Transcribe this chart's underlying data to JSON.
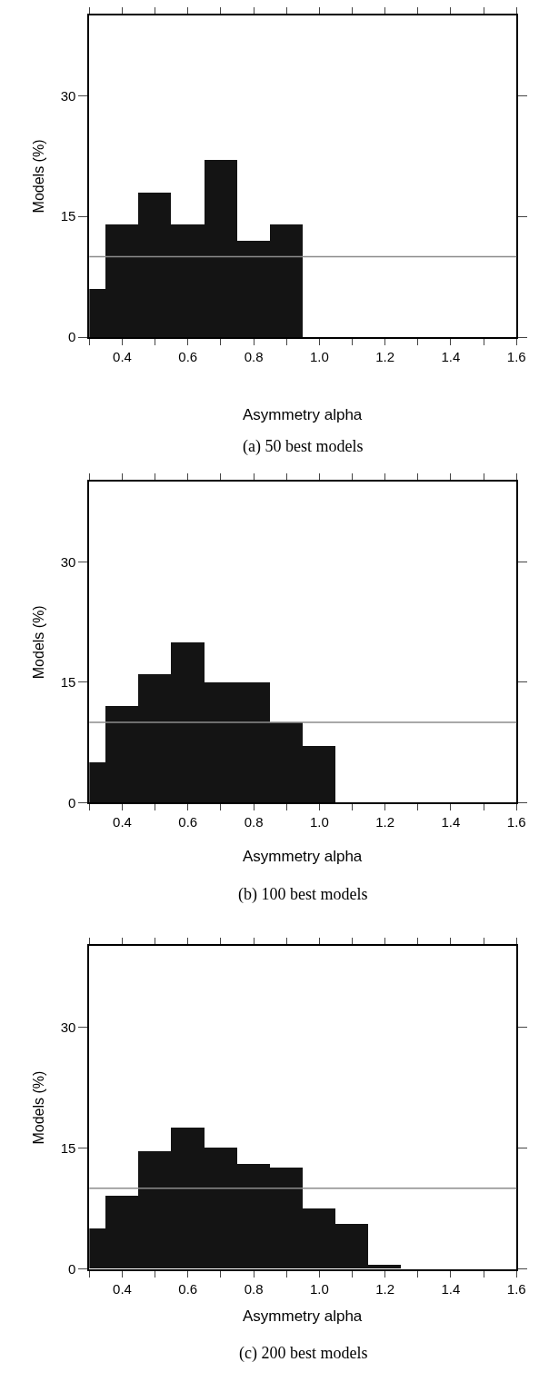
{
  "chart_data": [
    {
      "type": "histogram",
      "title": "(a) 50 best models",
      "xlabel": "Asymmetry alpha",
      "ylabel": "Models (%)",
      "color": "#141414",
      "bins": [
        0.3,
        0.35,
        0.45,
        0.55,
        0.65,
        0.75,
        0.85,
        0.95
      ],
      "values": [
        6,
        14,
        18,
        14,
        22,
        12,
        14
      ],
      "xlim": [
        0.3,
        1.6
      ],
      "xticks": [
        {
          "value": 0.3,
          "label": null
        },
        0.4,
        {
          "value": 0.5,
          "label": null
        },
        0.6,
        {
          "value": 0.7,
          "label": null
        },
        0.8,
        {
          "value": 0.9,
          "label": null
        },
        {
          "value": 1.0,
          "label": "1.0"
        },
        {
          "value": 1.1,
          "label": null
        },
        1.2,
        {
          "value": 1.3,
          "label": null
        },
        1.4,
        {
          "value": 1.5,
          "label": null
        },
        1.6
      ],
      "ylim": [
        0,
        40
      ],
      "yticks": [
        0,
        15,
        30
      ],
      "ref_lines": [
        {
          "axis": "y",
          "value": 10,
          "color": "#8c8c8c"
        }
      ]
    },
    {
      "type": "histogram",
      "title": "(b) 100 best models",
      "xlabel": "Asymmetry alpha",
      "ylabel": "Models (%)",
      "color": "#141414",
      "bins": [
        0.3,
        0.35,
        0.45,
        0.55,
        0.65,
        0.75,
        0.85,
        0.95,
        1.05
      ],
      "values": [
        5,
        12,
        16,
        20,
        15,
        15,
        10,
        7
      ],
      "xlim": [
        0.3,
        1.6
      ],
      "xticks": [
        {
          "value": 0.3,
          "label": null
        },
        0.4,
        {
          "value": 0.5,
          "label": null
        },
        0.6,
        {
          "value": 0.7,
          "label": null
        },
        0.8,
        {
          "value": 0.9,
          "label": null
        },
        {
          "value": 1.0,
          "label": "1.0"
        },
        {
          "value": 1.1,
          "label": null
        },
        1.2,
        {
          "value": 1.3,
          "label": null
        },
        1.4,
        {
          "value": 1.5,
          "label": null
        },
        1.6
      ],
      "ylim": [
        0,
        40
      ],
      "yticks": [
        0,
        15,
        30
      ],
      "ref_lines": [
        {
          "axis": "y",
          "value": 10,
          "color": "#8c8c8c"
        }
      ]
    },
    {
      "type": "histogram",
      "title": "(c) 200 best models",
      "xlabel": "Asymmetry alpha",
      "ylabel": "Models (%)",
      "color": "#141414",
      "bins": [
        0.3,
        0.35,
        0.45,
        0.55,
        0.65,
        0.75,
        0.85,
        0.95,
        1.05,
        1.15,
        1.25
      ],
      "values": [
        5,
        9,
        14.5,
        17.5,
        15,
        13,
        12.5,
        7.5,
        5.5,
        0.5
      ],
      "xlim": [
        0.3,
        1.6
      ],
      "xticks": [
        {
          "value": 0.3,
          "label": null
        },
        0.4,
        {
          "value": 0.5,
          "label": null
        },
        0.6,
        {
          "value": 0.7,
          "label": null
        },
        0.8,
        {
          "value": 0.9,
          "label": null
        },
        {
          "value": 1.0,
          "label": "1.0"
        },
        {
          "value": 1.1,
          "label": null
        },
        1.2,
        {
          "value": 1.3,
          "label": null
        },
        1.4,
        {
          "value": 1.5,
          "label": null
        },
        1.6
      ],
      "ylim": [
        0,
        40
      ],
      "yticks": [
        0,
        15,
        30
      ],
      "ref_lines": [
        {
          "axis": "y",
          "value": 10,
          "color": "#8c8c8c"
        }
      ]
    }
  ]
}
